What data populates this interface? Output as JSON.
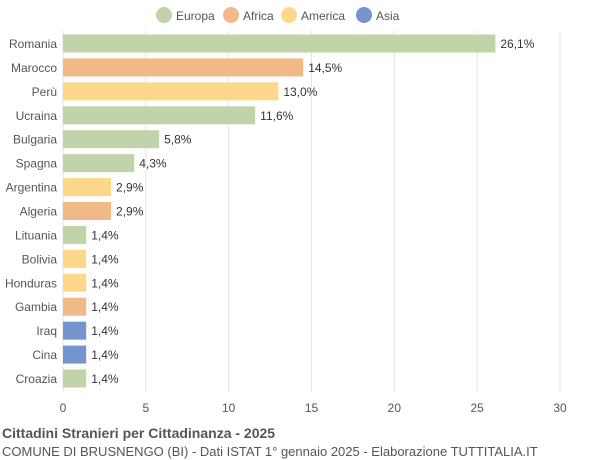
{
  "chart_data": {
    "type": "bar",
    "orientation": "horizontal",
    "title": "Cittadini Stranieri per Cittadinanza - 2025",
    "subtitle": "COMUNE DI BRUSNENGO (BI) - Dati ISTAT 1° gennaio 2025 - Elaborazione TUTTITALIA.IT",
    "legend": {
      "placement": "top",
      "entries": [
        {
          "name": "Europa",
          "color": "#c2d3a9"
        },
        {
          "name": "Africa",
          "color": "#f0b987"
        },
        {
          "name": "America",
          "color": "#fdd88a"
        },
        {
          "name": "Asia",
          "color": "#7593cc"
        }
      ]
    },
    "categories": [
      "Romania",
      "Marocco",
      "Perù",
      "Ucraina",
      "Bulgaria",
      "Spagna",
      "Argentina",
      "Algeria",
      "Lituania",
      "Bolivia",
      "Honduras",
      "Gambia",
      "Iraq",
      "Cina",
      "Croazia"
    ],
    "values": [
      26.1,
      14.5,
      13.0,
      11.6,
      5.8,
      4.3,
      2.9,
      2.9,
      1.4,
      1.4,
      1.4,
      1.4,
      1.4,
      1.4,
      1.4
    ],
    "labels": [
      "26,1%",
      "14,5%",
      "13,0%",
      "11,6%",
      "5,8%",
      "4,3%",
      "2,9%",
      "2,9%",
      "1,4%",
      "1,4%",
      "1,4%",
      "1,4%",
      "1,4%",
      "1,4%",
      "1,4%"
    ],
    "groups": [
      "Europa",
      "Africa",
      "America",
      "Europa",
      "Europa",
      "Europa",
      "America",
      "Africa",
      "Europa",
      "America",
      "America",
      "Africa",
      "Asia",
      "Asia",
      "Europa"
    ],
    "xlim": [
      0,
      30
    ],
    "xticks": [
      0,
      5,
      10,
      15,
      20,
      25,
      30
    ],
    "grid": true
  }
}
